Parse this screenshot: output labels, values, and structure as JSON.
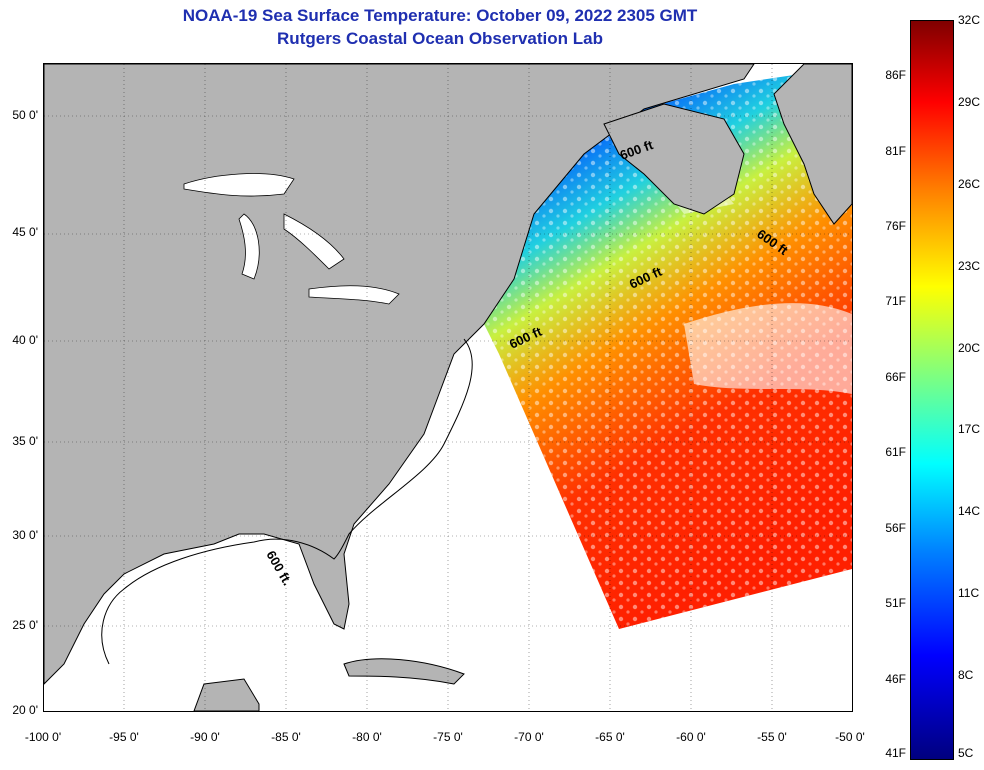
{
  "title": {
    "line1": "NOAA-19 Sea Surface Temperature:  October 09, 2022 2305 GMT",
    "line2": "Rutgers Coastal Ocean Observation Lab"
  },
  "map": {
    "lon_range": [
      -100,
      -50
    ],
    "lat_range": [
      20,
      52.5
    ],
    "lat_ticks": [
      {
        "value": 50,
        "label": "50 0'"
      },
      {
        "value": 45,
        "label": "45 0'"
      },
      {
        "value": 40,
        "label": "40 0'"
      },
      {
        "value": 35,
        "label": "35 0'"
      },
      {
        "value": 30,
        "label": "30 0'"
      },
      {
        "value": 25,
        "label": "25 0'"
      },
      {
        "value": 20,
        "label": "20 0'"
      }
    ],
    "lon_ticks": [
      {
        "value": -100,
        "label": "-100 0'"
      },
      {
        "value": -95,
        "label": "-95 0'"
      },
      {
        "value": -90,
        "label": "-90 0'"
      },
      {
        "value": -85,
        "label": "-85 0'"
      },
      {
        "value": -80,
        "label": "-80 0'"
      },
      {
        "value": -75,
        "label": "-75 0'"
      },
      {
        "value": -70,
        "label": "-70 0'"
      },
      {
        "value": -65,
        "label": "-65 0'"
      },
      {
        "value": -60,
        "label": "-60 0'"
      },
      {
        "value": -55,
        "label": "-55 0'"
      },
      {
        "value": -50,
        "label": "-50 0'"
      }
    ],
    "contour_labels": [
      "600 ft",
      "600 ft",
      "600 ft",
      "600 ft",
      "600 ft."
    ],
    "colors": {
      "land": "#b4b4b4",
      "ocean_no_data": "#ffffff",
      "coast": "#000000"
    }
  },
  "colorbar": {
    "fahrenheit": [
      "86F",
      "81F",
      "76F",
      "71F",
      "66F",
      "61F",
      "56F",
      "51F",
      "46F",
      "41F"
    ],
    "celsius": [
      "32C",
      "29C",
      "26C",
      "23C",
      "20C",
      "17C",
      "14C",
      "11C",
      "8C",
      "5C"
    ],
    "range_c": [
      5,
      32
    ]
  }
}
